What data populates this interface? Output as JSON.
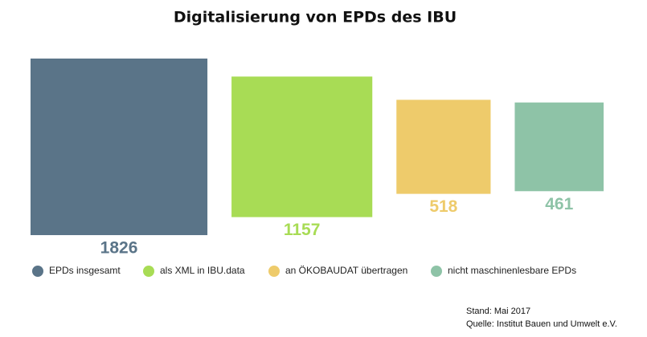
{
  "chart_data": {
    "type": "square",
    "title": "Digitalisierung von EPDs des IBU",
    "categories": [
      "EPDs insgesamt",
      "als XML in IBU.data",
      "an ÖKOBAUDAT übertragen",
      "nicht maschinenlesbare EPDs"
    ],
    "values": [
      1826,
      1157,
      518,
      461
    ],
    "colors": [
      "#5a7488",
      "#a8dc55",
      "#eecb6b",
      "#8ec3a7"
    ],
    "notes": [
      "Stand: Mai 2017",
      "Quelle: Institut Bauen und Umwelt e.V."
    ]
  }
}
